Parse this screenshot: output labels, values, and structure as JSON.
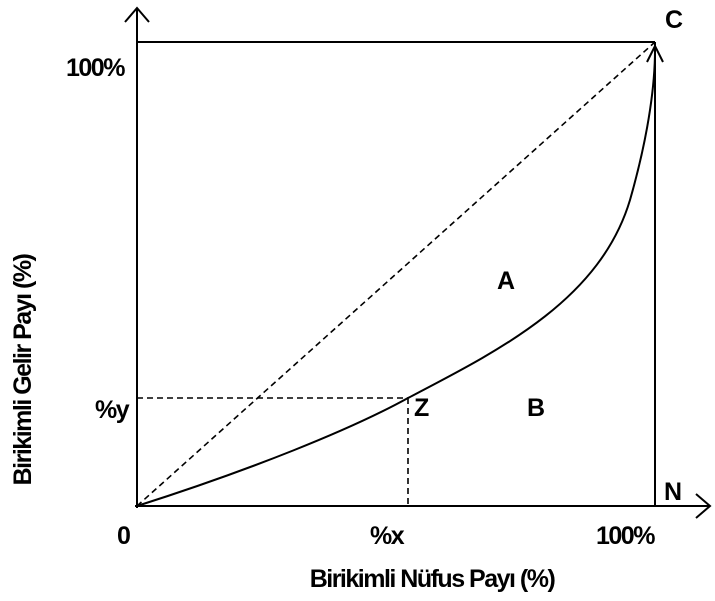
{
  "diagram": {
    "x_axis_title": "Birikimli Nüfus Payı (%)",
    "y_axis_title": "Birikimli Gelir Payı (%)",
    "origin_label": "0",
    "x_mark_label": "%x",
    "x_end_label": "100%",
    "y_mark_label": "%y",
    "y_end_label": "100%",
    "corner_top_label": "C",
    "corner_bottom_label": "N",
    "point_label": "Z",
    "area_a_label": "A",
    "area_b_label": "B"
  }
}
